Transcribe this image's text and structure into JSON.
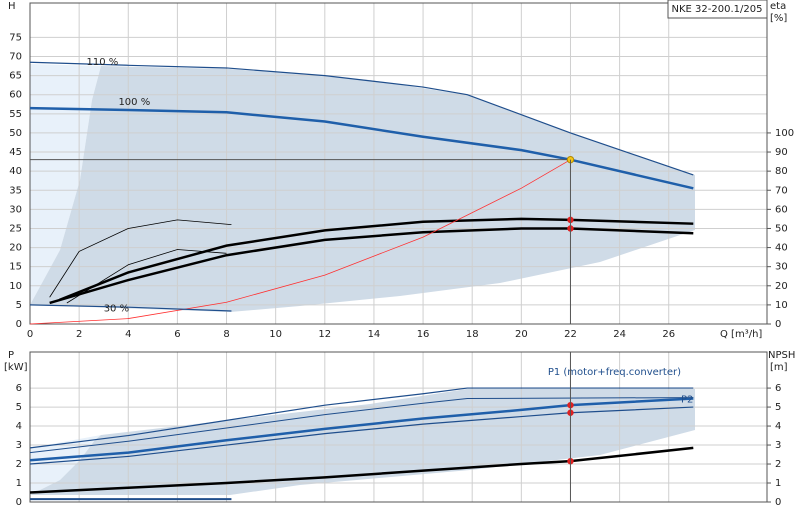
{
  "chart_data": [
    {
      "type": "line",
      "title": "NKE 32-200.1/205",
      "ylabel": "H",
      "y2label": "eta",
      "y2unit": "[%]",
      "xlabel": "Q [m³/h]",
      "xlim": [
        0,
        30
      ],
      "xticks": [
        0,
        2,
        4,
        6,
        8,
        10,
        12,
        14,
        16,
        18,
        20,
        22,
        24,
        26
      ],
      "ylim": [
        0,
        84
      ],
      "yticks": [
        0,
        5,
        10,
        15,
        20,
        25,
        30,
        35,
        40,
        45,
        50,
        55,
        60,
        65,
        70,
        75
      ],
      "y2lim": [
        0,
        168
      ],
      "y2ticks": [
        0,
        10,
        20,
        30,
        40,
        50,
        60,
        70,
        80,
        90,
        100
      ],
      "grid": true,
      "series": [
        {
          "name": "110 %",
          "color": "#1f4e8c",
          "width": 1.2,
          "x": [
            0,
            4,
            8,
            12,
            16,
            17.8,
            22,
            27
          ],
          "values": [
            68.5,
            67.7,
            67,
            65,
            62,
            60,
            50,
            39
          ]
        },
        {
          "name": "100 %",
          "color": "#1f5faa",
          "width": 2.5,
          "x": [
            0,
            4,
            8,
            12,
            16,
            20,
            22,
            27
          ],
          "values": [
            56.5,
            56,
            55.4,
            53,
            49,
            45.5,
            43,
            35.5
          ]
        },
        {
          "axis": "y2",
          "color": "#000000",
          "width": 2.5,
          "x": [
            1.2,
            4,
            8,
            12,
            16,
            20,
            22,
            27
          ],
          "values": [
            12.6,
            27,
            41,
            49,
            53.5,
            55,
            54.5,
            52.5
          ]
        },
        {
          "axis": "y2",
          "color": "#000000",
          "width": 2.5,
          "x": [
            0.8,
            4,
            8,
            12,
            16,
            20,
            22,
            27
          ],
          "values": [
            11,
            23,
            36,
            44,
            48,
            50,
            50,
            47.5
          ]
        },
        {
          "axis": "y2",
          "color": "#000000",
          "width": 0.8,
          "x": [
            0.8,
            2,
            4,
            6,
            8.2
          ],
          "values": [
            14,
            38,
            50,
            54.5,
            52
          ]
        },
        {
          "axis": "y2",
          "color": "#000000",
          "width": 0.8,
          "x": [
            1.5,
            4,
            6,
            8
          ],
          "values": [
            11,
            31,
            39,
            37
          ]
        },
        {
          "color": "#ff3030",
          "width": 0.8,
          "x": [
            0,
            4,
            8,
            12,
            16,
            20,
            22
          ],
          "values": [
            0,
            1.42,
            5.69,
            12.79,
            22.74,
            35.54,
            43
          ]
        },
        {
          "name": "30 %",
          "color": "#1f4e8c",
          "width": 1.2,
          "x": [
            0,
            4,
            8.2
          ],
          "values": [
            5,
            4.4,
            3.4
          ]
        }
      ],
      "points": [
        {
          "x": 22,
          "y": 43,
          "color": "#f5c518"
        },
        {
          "x": 22,
          "y": 54.5,
          "axis": "y2",
          "color": "#e02020"
        },
        {
          "x": 22,
          "y": 50,
          "axis": "y2",
          "color": "#e02020"
        }
      ]
    },
    {
      "type": "line",
      "ylabel": "P",
      "yunit": "[kW]",
      "y2label": "NPSH",
      "y2unit": "[m]",
      "xlim": [
        0,
        30
      ],
      "ylim": [
        0,
        7.9
      ],
      "yticks": [
        0,
        1,
        2,
        3,
        4,
        5,
        6
      ],
      "y2lim": [
        0,
        7.9
      ],
      "y2ticks": [
        0,
        1,
        2,
        3,
        4,
        5,
        6
      ],
      "grid": true,
      "series": [
        {
          "name": "P1 (motor+freq.converter)",
          "color": "#1f4e8c",
          "width": 1.2,
          "x": [
            0,
            4,
            8,
            12,
            16,
            17.8,
            27
          ],
          "values": [
            2.85,
            3.5,
            4.3,
            5.1,
            5.7,
            6.0,
            6.0
          ]
        },
        {
          "color": "#1f5faa",
          "width": 2.5,
          "x": [
            0,
            4,
            8,
            12,
            16,
            20,
            22,
            27
          ],
          "values": [
            2.2,
            2.6,
            3.25,
            3.85,
            4.4,
            4.85,
            5.1,
            5.45
          ]
        },
        {
          "color": "#1f4e8c",
          "width": 1,
          "x": [
            0,
            4,
            8,
            12,
            16,
            17.8,
            27
          ],
          "values": [
            2.6,
            3.2,
            3.9,
            4.6,
            5.2,
            5.45,
            5.5
          ]
        },
        {
          "name": "P2",
          "color": "#1f4e8c",
          "width": 1.2,
          "x": [
            0,
            4,
            8,
            12,
            16,
            20,
            22,
            27
          ],
          "values": [
            2.0,
            2.4,
            3.0,
            3.6,
            4.1,
            4.5,
            4.7,
            5.0
          ]
        },
        {
          "axis": "y2",
          "color": "#000000",
          "width": 2.5,
          "x": [
            0,
            4,
            8,
            12,
            16,
            20,
            22,
            27
          ],
          "values": [
            0.5,
            0.75,
            1.0,
            1.3,
            1.65,
            2.0,
            2.15,
            2.85
          ]
        },
        {
          "color": "#1f4e8c",
          "width": 2,
          "x": [
            0,
            8.2
          ],
          "values": [
            0.15,
            0.15
          ]
        }
      ],
      "points": [
        {
          "x": 22,
          "y": 5.1,
          "color": "#e02020"
        },
        {
          "x": 22,
          "y": 4.7,
          "color": "#e02020"
        },
        {
          "x": 22,
          "y": 2.15,
          "axis": "y2",
          "color": "#e02020"
        }
      ]
    }
  ]
}
